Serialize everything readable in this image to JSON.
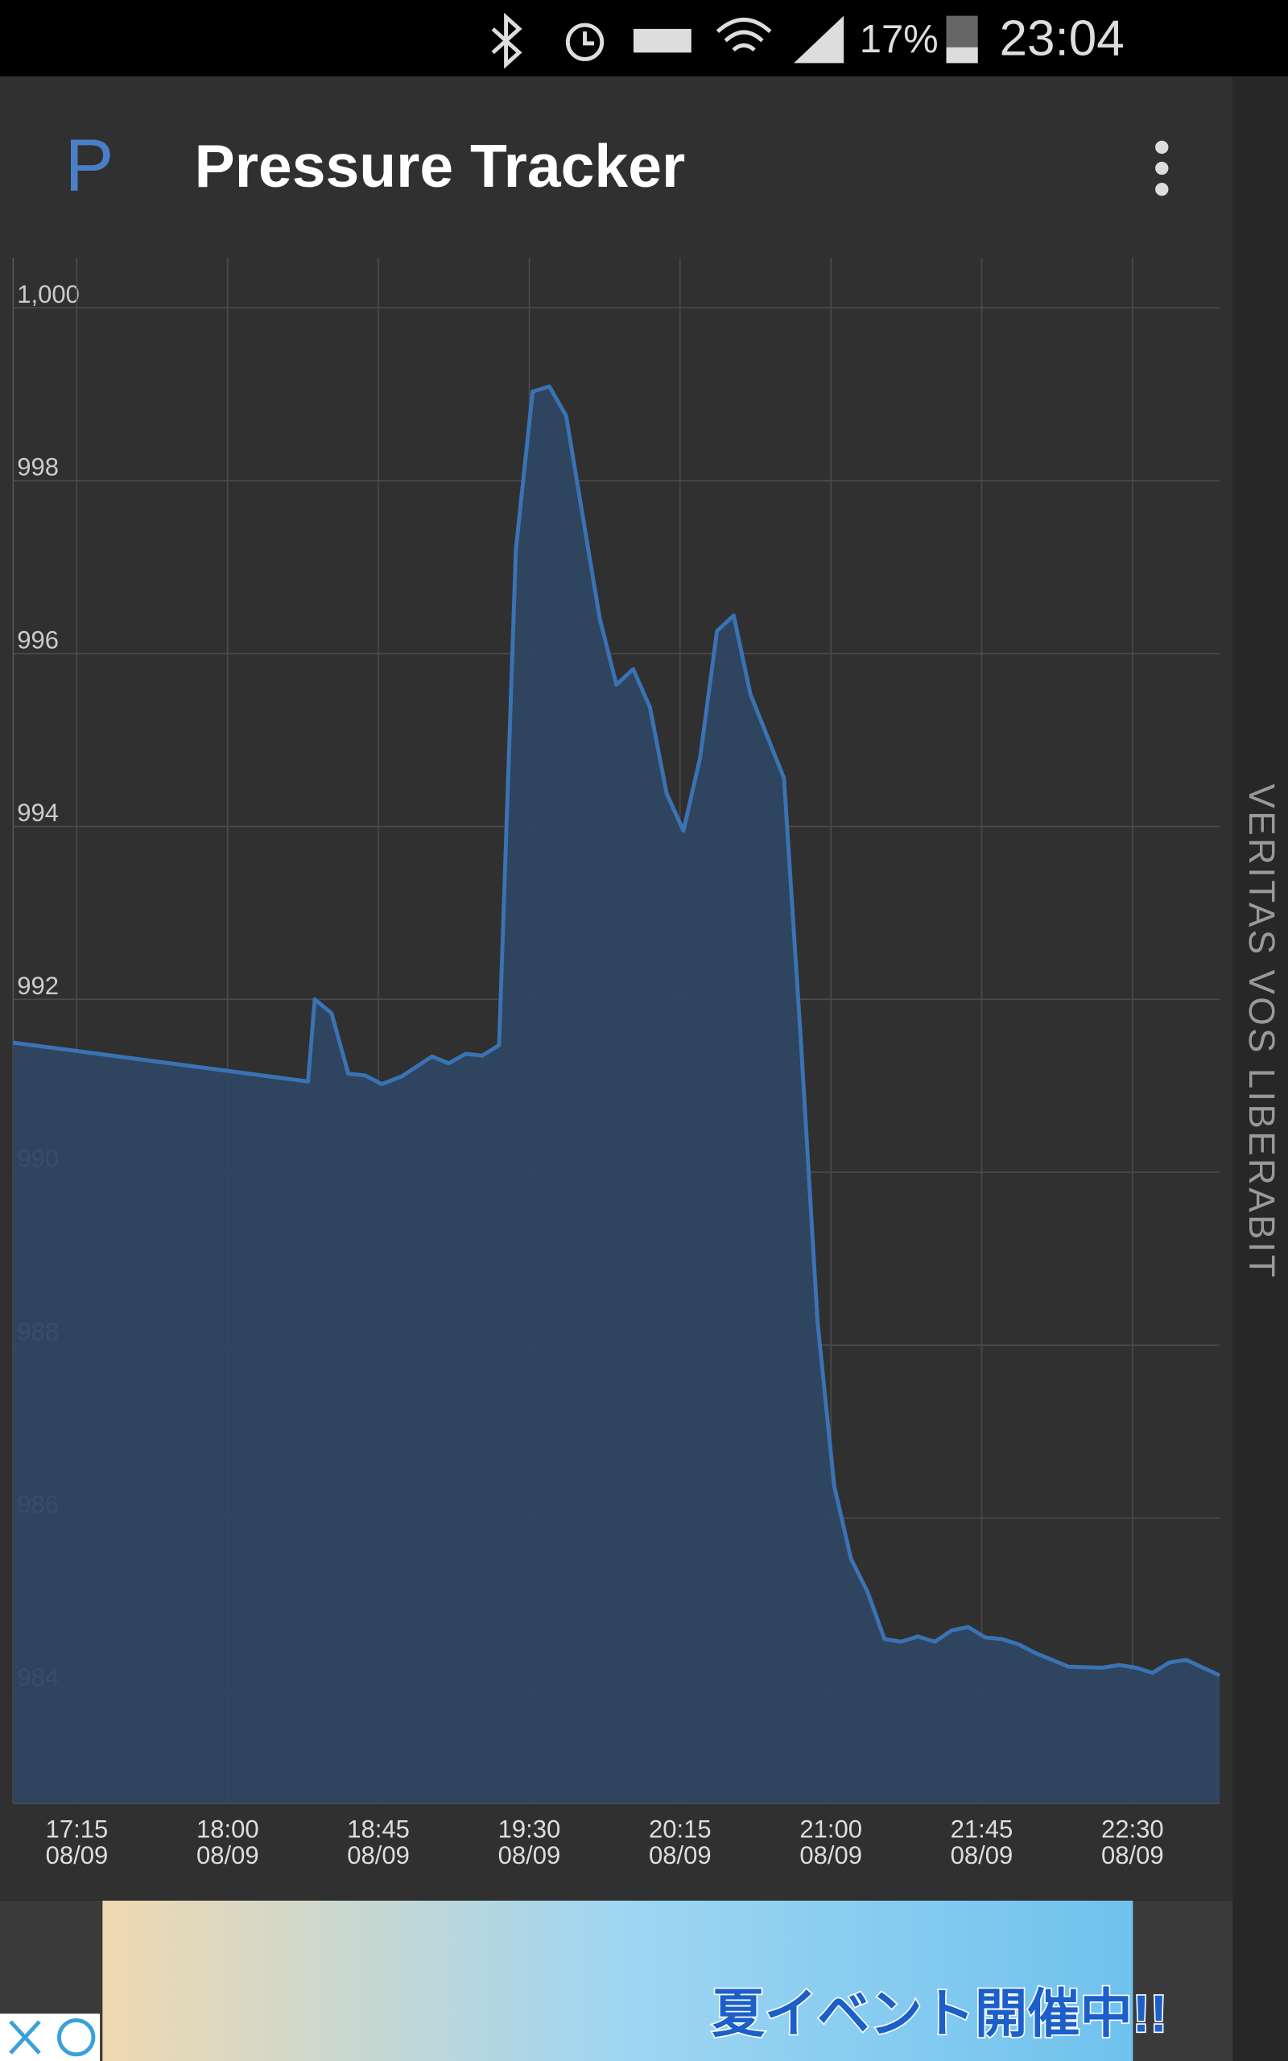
{
  "status_bar": {
    "battery": "17%",
    "time": "23:04"
  },
  "app_bar": {
    "logo": "P",
    "title": "Pressure Tracker"
  },
  "chart_data": {
    "type": "line",
    "x": [
      "16:56",
      "18:24",
      "18:26",
      "18:31",
      "18:36",
      "18:41",
      "18:46",
      "18:52",
      "19:01",
      "19:06",
      "19:11",
      "19:16",
      "19:21",
      "19:26",
      "19:31",
      "19:36",
      "19:41",
      "19:51",
      "19:56",
      "20:01",
      "20:06",
      "20:11",
      "20:16",
      "20:21",
      "20:26",
      "20:31",
      "20:36",
      "20:46",
      "20:51",
      "20:56",
      "21:01",
      "21:06",
      "21:11",
      "21:16",
      "21:21",
      "21:26",
      "21:31",
      "21:36",
      "21:41",
      "21:46",
      "21:51",
      "21:56",
      "22:01",
      "22:11",
      "22:21",
      "22:26",
      "22:31",
      "22:36",
      "22:41",
      "22:46",
      "22:56"
    ],
    "series": [
      {
        "color": "#3a73b3",
        "fill": "#2f4661",
        "values": [
          991.5,
          991.05,
          992.0,
          991.84,
          991.14,
          991.12,
          991.02,
          991.11,
          991.34,
          991.26,
          991.37,
          991.35,
          991.47,
          997.2,
          999.03,
          999.09,
          998.75,
          996.41,
          995.64,
          995.82,
          995.38,
          994.38,
          993.95,
          994.8,
          996.26,
          996.44,
          995.53,
          994.56,
          991.55,
          988.28,
          986.37,
          985.53,
          985.14,
          984.6,
          984.57,
          984.63,
          984.57,
          984.7,
          984.74,
          984.62,
          984.6,
          984.54,
          984.44,
          984.28,
          984.27,
          984.3,
          984.27,
          984.21,
          984.33,
          984.36,
          984.18
        ]
      }
    ],
    "xlim": [
      "16:56",
      "22:56"
    ],
    "xticks": [
      "17:15",
      "18:00",
      "18:45",
      "19:30",
      "20:15",
      "21:00",
      "21:45",
      "22:30"
    ],
    "x_date": "08/09",
    "ylim": [
      982.7,
      1000.58
    ],
    "yticks": [
      984,
      986,
      988,
      990,
      992,
      994,
      996,
      998,
      {
        "value": 1000,
        "label": "1,000"
      }
    ],
    "grid": true
  },
  "watermark": "VERITAS VOS LIBERABIT",
  "ad": {
    "text": "夏イベント開催中!!"
  }
}
